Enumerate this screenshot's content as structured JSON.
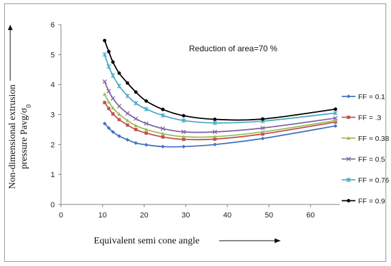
{
  "chart_data": {
    "type": "line",
    "annotation": "Reduction of area=70 %",
    "ylabel_line1": "Non-dimensional extrusion",
    "ylabel_line2": "pressure  Pavg/σ",
    "ylabel_sub": "0",
    "xlabel": "Equivalent semi cone angle",
    "xlim": [
      0,
      67
    ],
    "ylim": [
      0,
      6
    ],
    "x_ticks": [
      "0",
      "10",
      "20",
      "30",
      "40",
      "50",
      "60"
    ],
    "y_ticks": [
      "0",
      "1",
      "2",
      "3",
      "4",
      "5",
      "6"
    ],
    "grid": false,
    "legend_position": "right",
    "series": [
      {
        "name": "FF = 0.1",
        "color": "#4472c4",
        "marker": "diamond",
        "x": [
          10.5,
          11.5,
          12.5,
          14,
          16,
          18,
          20.5,
          24.5,
          29.5,
          37,
          48.5,
          66
        ],
        "y": [
          2.7,
          2.55,
          2.42,
          2.28,
          2.16,
          2.05,
          1.99,
          1.93,
          1.93,
          2.0,
          2.2,
          2.62
        ]
      },
      {
        "name": "FF = .3",
        "color": "#c0504d",
        "marker": "square",
        "x": [
          10.5,
          11.5,
          12.5,
          14,
          16,
          18,
          20.5,
          24.5,
          29.5,
          37,
          48.5,
          66
        ],
        "y": [
          3.4,
          3.2,
          3.02,
          2.83,
          2.65,
          2.5,
          2.38,
          2.25,
          2.17,
          2.18,
          2.35,
          2.75
        ]
      },
      {
        "name": "FF = 0.38",
        "color": "#9bbb59",
        "marker": "triangle",
        "x": [
          10.5,
          11.5,
          12.5,
          14,
          16,
          18,
          20.5,
          24.5,
          29.5,
          37,
          48.5,
          66
        ],
        "y": [
          3.68,
          3.42,
          3.22,
          3.01,
          2.8,
          2.63,
          2.5,
          2.36,
          2.26,
          2.26,
          2.42,
          2.8
        ]
      },
      {
        "name": "FF = 0.5",
        "color": "#8064a2",
        "marker": "x",
        "x": [
          10.5,
          11.5,
          12.5,
          14,
          16,
          18,
          20.5,
          24.5,
          29.5,
          37,
          48.5,
          66
        ],
        "y": [
          4.1,
          3.78,
          3.54,
          3.28,
          3.04,
          2.86,
          2.7,
          2.53,
          2.42,
          2.42,
          2.55,
          2.88
        ]
      },
      {
        "name": "FF = 0.76",
        "color": "#4bacc6",
        "marker": "star",
        "x": [
          10.5,
          11.5,
          12.5,
          14,
          16,
          18,
          20.5,
          24.5,
          29.5,
          37,
          48.5,
          66
        ],
        "y": [
          5.0,
          4.6,
          4.3,
          3.95,
          3.62,
          3.38,
          3.18,
          2.97,
          2.8,
          2.72,
          2.78,
          3.05
        ]
      },
      {
        "name": "FF = 0.9",
        "color": "#000000",
        "marker": "circle",
        "x": [
          10.5,
          11.5,
          12.5,
          14,
          16,
          18,
          20.5,
          24.5,
          29.5,
          37,
          48.5,
          66
        ],
        "y": [
          5.47,
          5.1,
          4.75,
          4.38,
          4.05,
          3.75,
          3.45,
          3.17,
          2.96,
          2.84,
          2.85,
          3.18
        ]
      }
    ]
  }
}
